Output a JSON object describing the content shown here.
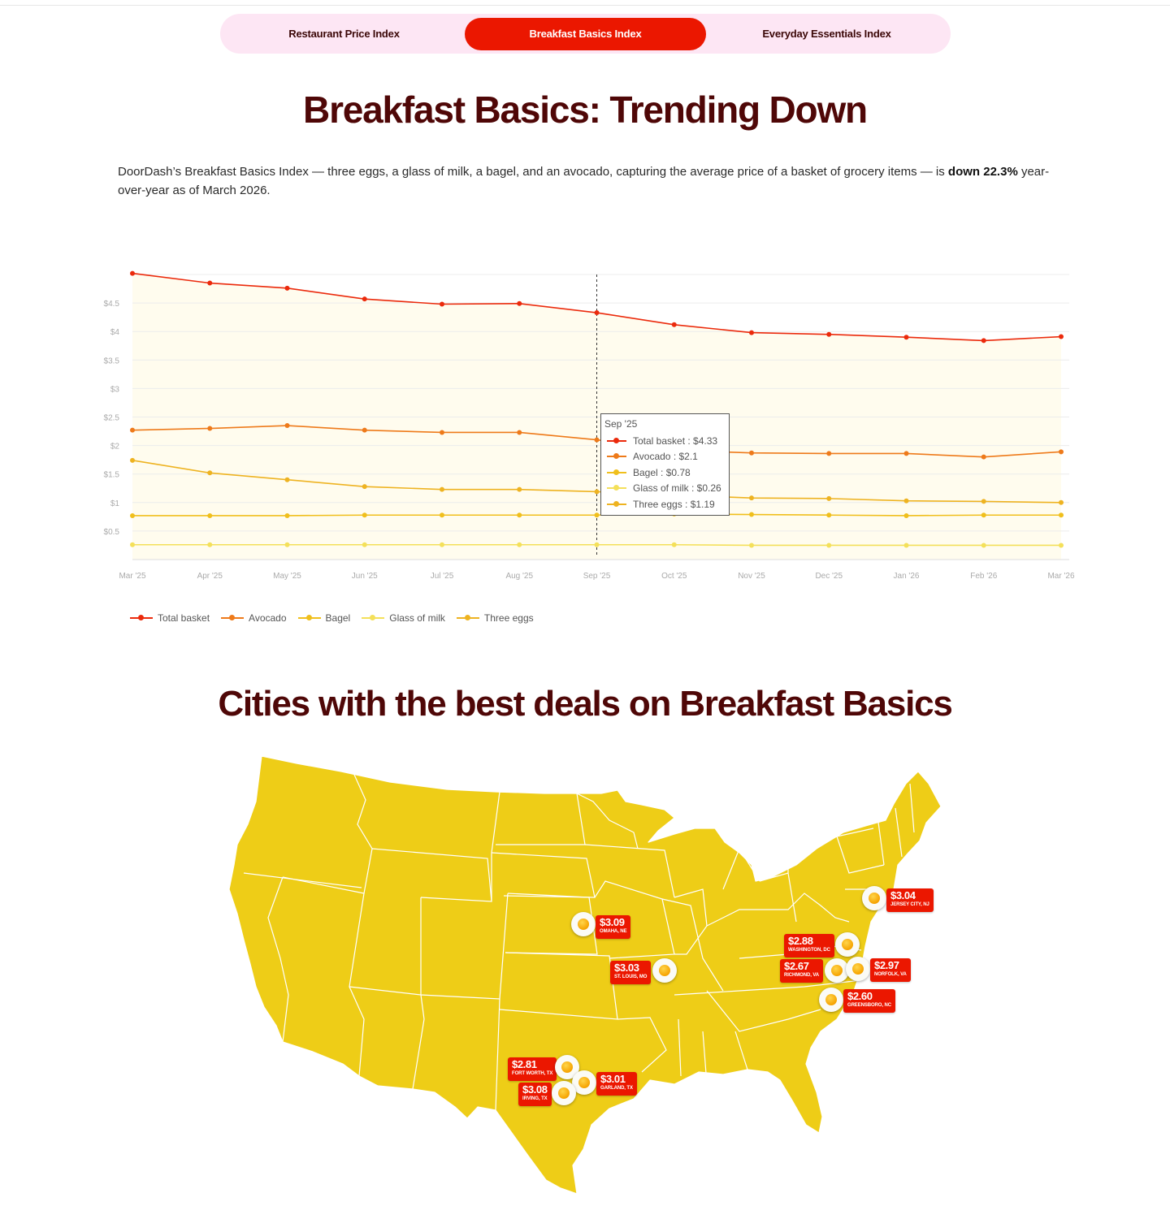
{
  "tabs": [
    {
      "label": "Restaurant Price Index",
      "active": false
    },
    {
      "label": "Breakfast Basics Index",
      "active": true
    },
    {
      "label": "Everyday Essentials Index",
      "active": false
    }
  ],
  "heading": "Breakfast Basics: Trending Down",
  "intro": {
    "before": "DoorDash’s Breakfast Basics Index — three eggs, a glass of milk, a bagel, and an avocado, capturing the average price of a basket of grocery items — is ",
    "bold": "down 22.3%",
    "after": " year-over-year as of March 2026."
  },
  "chart_data": {
    "type": "line",
    "x": [
      "Mar '25",
      "Apr '25",
      "May '25",
      "Jun '25",
      "Jul '25",
      "Aug '25",
      "Sep '25",
      "Oct '25",
      "Nov '25",
      "Dec '25",
      "Jan '26",
      "Feb '26",
      "Mar '26"
    ],
    "y_ticks": [
      "$0.5",
      "$1",
      "$1.5",
      "$2",
      "$2.5",
      "$3",
      "$3.5",
      "$4",
      "$4.5"
    ],
    "ylim": [
      0,
      5
    ],
    "grid": true,
    "legend_position": "bottom-left",
    "series": [
      {
        "name": "Total basket",
        "color": "#eb2a0c",
        "area": true,
        "values": [
          5.02,
          4.85,
          4.76,
          4.57,
          4.48,
          4.49,
          4.33,
          4.12,
          3.98,
          3.95,
          3.9,
          3.84,
          3.91
        ]
      },
      {
        "name": "Avocado",
        "color": "#ee7a1a",
        "values": [
          2.27,
          2.3,
          2.35,
          2.27,
          2.23,
          2.23,
          2.1,
          1.92,
          1.87,
          1.86,
          1.86,
          1.8,
          1.89
        ]
      },
      {
        "name": "Bagel",
        "color": "#f0bf1c",
        "values": [
          0.77,
          0.77,
          0.77,
          0.78,
          0.78,
          0.78,
          0.78,
          0.8,
          0.79,
          0.78,
          0.77,
          0.78,
          0.78
        ]
      },
      {
        "name": "Glass of milk",
        "color": "#f4e05a",
        "values": [
          0.26,
          0.26,
          0.26,
          0.26,
          0.26,
          0.26,
          0.26,
          0.26,
          0.25,
          0.25,
          0.25,
          0.25,
          0.25
        ]
      },
      {
        "name": "Three eggs",
        "color": "#eeb321",
        "values": [
          1.74,
          1.52,
          1.4,
          1.28,
          1.23,
          1.23,
          1.19,
          1.13,
          1.08,
          1.07,
          1.03,
          1.02,
          1.0
        ]
      }
    ],
    "tooltip": {
      "title": "Sep '25",
      "rows": [
        {
          "label": "Total basket",
          "value": "$4.33",
          "color": "#eb2a0c"
        },
        {
          "label": "Avocado",
          "value": "$2.1",
          "color": "#ee7a1a"
        },
        {
          "label": "Bagel",
          "value": "$0.78",
          "color": "#f0bf1c"
        },
        {
          "label": "Glass of milk",
          "value": "$0.26",
          "color": "#f4e05a"
        },
        {
          "label": "Three eggs",
          "value": "$1.19",
          "color": "#eeb321"
        }
      ]
    }
  },
  "cities_heading": "Cities with the best deals on Breakfast Basics",
  "map": {
    "fill_color": "#eecd17",
    "pins": [
      {
        "price": "$3.04",
        "city": "Jersey City, NJ"
      },
      {
        "price": "$3.09",
        "city": "Omaha, NE"
      },
      {
        "price": "$2.88",
        "city": "Washington, DC"
      },
      {
        "price": "$3.03",
        "city": "St. Louis, MO"
      },
      {
        "price": "$2.67",
        "city": "Richmond, VA"
      },
      {
        "price": "$2.97",
        "city": "Norfolk, VA"
      },
      {
        "price": "$2.60",
        "city": "Greensboro, NC"
      },
      {
        "price": "$2.81",
        "city": "Fort Worth, TX"
      },
      {
        "price": "$3.01",
        "city": "Garland, TX"
      },
      {
        "price": "$3.08",
        "city": "Irving, TX"
      }
    ]
  },
  "colors": {
    "accent": "#eb1700",
    "heading": "#4f0707",
    "tab_bg": "#fde6f4",
    "plot_fill": "#fffcee"
  }
}
